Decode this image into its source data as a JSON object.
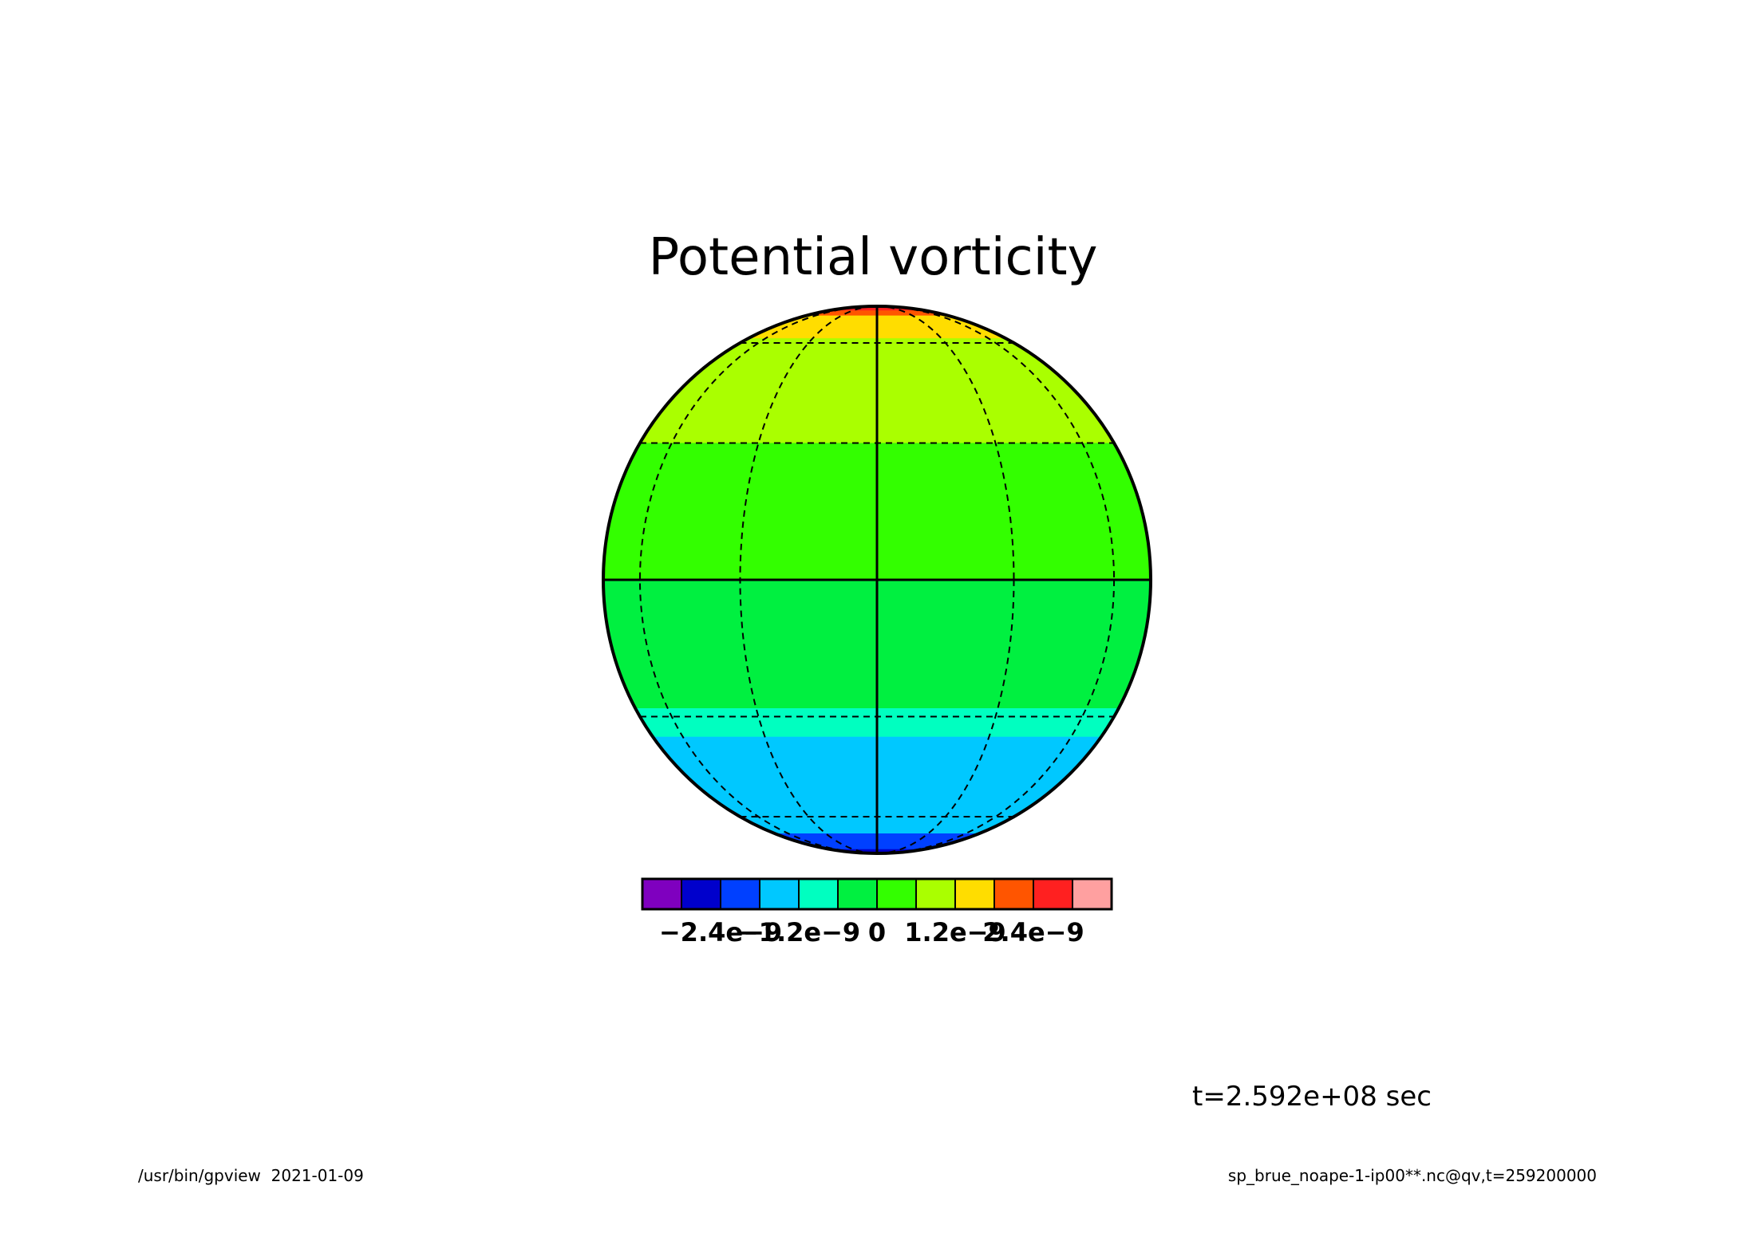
{
  "chart_data": {
    "type": "filled-contour-map",
    "title": "Potential vorticity",
    "time_label": "t=2.592e+08 sec",
    "projection": "orthographic",
    "grid": true,
    "colorbar": {
      "levels": [
        -2.4e-09,
        -1.8e-09,
        -1.2e-09,
        -6e-10,
        0,
        6e-10,
        1.2e-09,
        1.8e-09,
        2.4e-09
      ],
      "colors": [
        "#7f00bf",
        "#0000cc",
        "#0040ff",
        "#00c8ff",
        "#00ffc0",
        "#00f040",
        "#33ff00",
        "#aaff00",
        "#ffdd00",
        "#ff5500",
        "#ff2020",
        "#ffa0a0"
      ],
      "tick_labels": [
        "−2.4e−9",
        "−1.2e−9",
        "0",
        "1.2e−9",
        "2.4e−9"
      ]
    },
    "bands": [
      {
        "lat_from": 90,
        "lat_to": 80,
        "value": 2.1e-09,
        "color": "#ff2020"
      },
      {
        "lat_from": 80,
        "lat_to": 75,
        "value": 1.5e-09,
        "color": "#ff5500"
      },
      {
        "lat_from": 75,
        "lat_to": 62,
        "value": 9e-10,
        "color": "#ffdd00"
      },
      {
        "lat_from": 62,
        "lat_to": 30,
        "value": 3e-10,
        "color": "#aaff00"
      },
      {
        "lat_from": 30,
        "lat_to": 0,
        "value": 1e-10,
        "color": "#33ff00"
      },
      {
        "lat_from": 0,
        "lat_to": -28,
        "value": -1e-10,
        "color": "#00f040"
      },
      {
        "lat_from": -28,
        "lat_to": -35,
        "value": -5e-10,
        "color": "#00ffc0"
      },
      {
        "lat_from": -35,
        "lat_to": -68,
        "value": -9e-10,
        "color": "#00c8ff"
      },
      {
        "lat_from": -68,
        "lat_to": -80,
        "value": -1.5e-09,
        "color": "#0040ff"
      },
      {
        "lat_from": -80,
        "lat_to": -90,
        "value": -2.1e-09,
        "color": "#0000cc"
      }
    ]
  },
  "footer": {
    "left": "/usr/bin/gpview  2021-01-09",
    "right": "sp_brue_noape-1-ip00**.nc@qv,t=259200000"
  }
}
